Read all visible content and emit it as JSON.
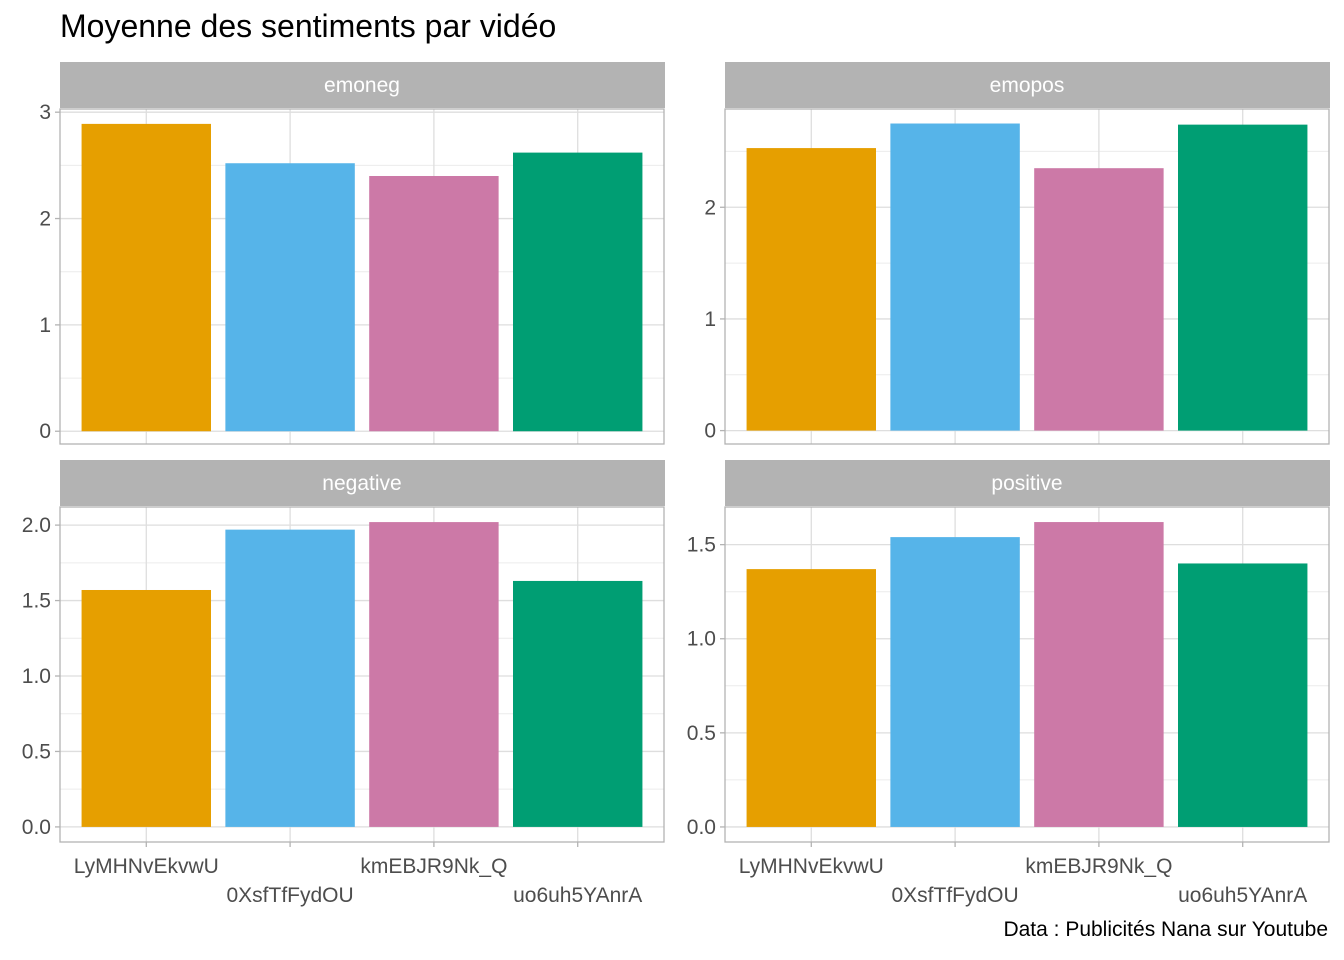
{
  "chart_data": {
    "type": "bar",
    "title": "Moyenne des sentiments par vidéo",
    "caption": "Data : Publicités Nana sur Youtube",
    "categories": [
      "LyMHNvEkvwU",
      "0XsfTfFydOU",
      "kmEBJR9Nk_Q",
      "uo6uh5YAnrA"
    ],
    "colors": [
      "#E69F00",
      "#56B4E9",
      "#CC79A7",
      "#009E73"
    ],
    "legend": "none",
    "grid": true,
    "panels": [
      {
        "name": "emoneg",
        "values": [
          2.89,
          2.52,
          2.4,
          2.62
        ],
        "ylim": [
          -0.12,
          3.03
        ],
        "ticks": [
          "0",
          "1",
          "2",
          "3"
        ],
        "tick_values": [
          0,
          1,
          2,
          3
        ],
        "minor_ticks": [
          0.5,
          1.5,
          2.5
        ]
      },
      {
        "name": "emopos",
        "values": [
          2.53,
          2.75,
          2.35,
          2.74
        ],
        "ylim": [
          -0.12,
          2.88
        ],
        "ticks": [
          "0",
          "1",
          "2"
        ],
        "tick_values": [
          0,
          1,
          2
        ],
        "minor_ticks": [
          0.5,
          1.5,
          2.5
        ]
      },
      {
        "name": "negative",
        "values": [
          1.57,
          1.97,
          2.02,
          1.63
        ],
        "ylim": [
          -0.1,
          2.12
        ],
        "ticks": [
          "0.0",
          "0.5",
          "1.0",
          "1.5",
          "2.0"
        ],
        "tick_values": [
          0,
          0.5,
          1,
          1.5,
          2
        ],
        "minor_ticks": [
          0.25,
          0.75,
          1.25,
          1.75
        ]
      },
      {
        "name": "positive",
        "values": [
          1.37,
          1.54,
          1.62,
          1.4
        ],
        "ylim": [
          -0.08,
          1.7
        ],
        "ticks": [
          "0.0",
          "0.5",
          "1.0",
          "1.5"
        ],
        "tick_values": [
          0,
          0.5,
          1,
          1.5
        ],
        "minor_ticks": [
          0.25,
          0.75,
          1.25
        ]
      }
    ]
  }
}
